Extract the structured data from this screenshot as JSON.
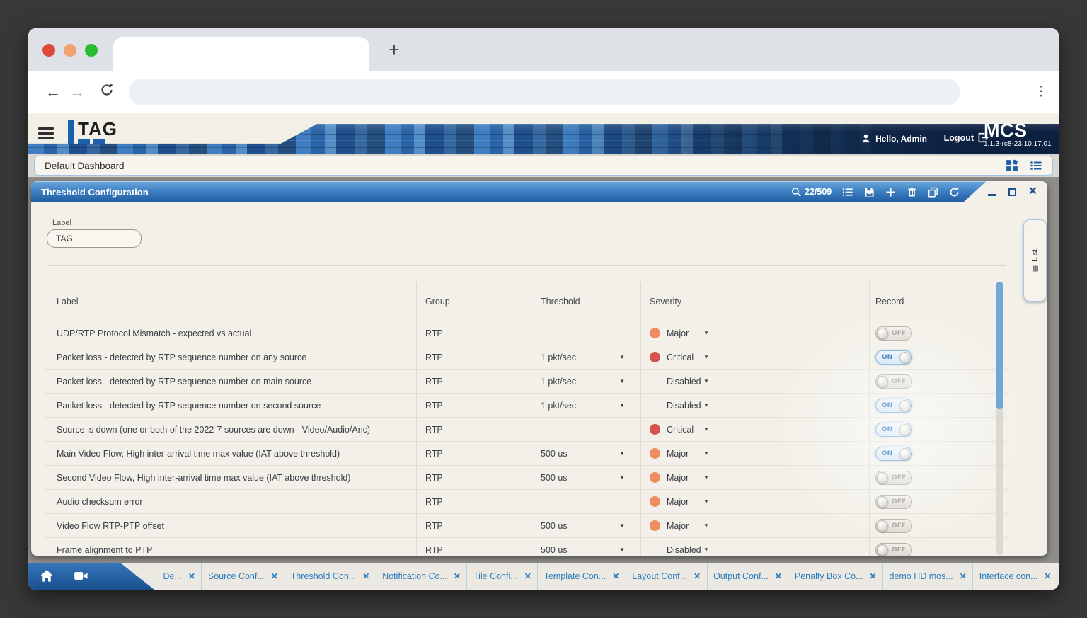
{
  "chrome": {
    "new_tab": "+",
    "menu_glyph": "⋮",
    "back_glyph": "←",
    "forward_glyph": "→"
  },
  "appbar": {
    "brand": "TAG",
    "greeting": "Hello, Admin",
    "logout_label": "Logout",
    "product": "MCS",
    "version": "1.1.3-rc8-23.10.17.01"
  },
  "dashboard": {
    "title": "Default Dashboard"
  },
  "panel": {
    "title": "Threshold Configuration",
    "zoom_indicator": "22/509",
    "field_label": "Label",
    "field_value": "TAG",
    "side_tab_label": "List",
    "side_tab_icon_glyph": "▦",
    "close_glyph": "✕"
  },
  "table": {
    "headers": {
      "label": "Label",
      "group": "Group",
      "threshold": "Threshold",
      "severity": "Severity",
      "record": "Record"
    },
    "severity_colors": {
      "orange": "#ef8d62",
      "red": "#d5524d"
    },
    "caret_glyph": "▼",
    "rows": [
      {
        "label": "UDP/RTP Protocol Mismatch - expected vs actual",
        "group": "RTP",
        "threshold": "",
        "severity": "Major",
        "severity_color": "orange",
        "record": "OFF"
      },
      {
        "label": "Packet loss - detected by RTP sequence number on any source",
        "group": "RTP",
        "threshold": "1 pkt/sec",
        "severity": "Critical",
        "severity_color": "red",
        "record": "ON"
      },
      {
        "label": "Packet loss - detected by RTP sequence number on main source",
        "group": "RTP",
        "threshold": "1 pkt/sec",
        "severity": "Disabled",
        "severity_color": "none",
        "record": "OFF"
      },
      {
        "label": "Packet loss - detected by RTP sequence number on second source",
        "group": "RTP",
        "threshold": "1 pkt/sec",
        "severity": "Disabled",
        "severity_color": "none",
        "record": "ON"
      },
      {
        "label": "Source is down (one or both of the 2022-7 sources are down - Video/Audio/Anc)",
        "group": "RTP",
        "threshold": "",
        "severity": "Critical",
        "severity_color": "red",
        "record": "ON"
      },
      {
        "label": "Main Video Flow, High inter-arrival time max value (IAT above threshold)",
        "group": "RTP",
        "threshold": "500 us",
        "severity": "Major",
        "severity_color": "orange",
        "record": "ON"
      },
      {
        "label": "Second Video Flow, High inter-arrival time max value (IAT above threshold)",
        "group": "RTP",
        "threshold": "500 us",
        "severity": "Major",
        "severity_color": "orange",
        "record": "OFF"
      },
      {
        "label": "Audio checksum error",
        "group": "RTP",
        "threshold": "",
        "severity": "Major",
        "severity_color": "orange",
        "record": "OFF"
      },
      {
        "label": "Video Flow RTP-PTP offset",
        "group": "RTP",
        "threshold": "500 us",
        "severity": "Major",
        "severity_color": "orange",
        "record": "OFF"
      },
      {
        "label": "Frame alignment to PTP",
        "group": "RTP",
        "threshold": "500 us",
        "severity": "Disabled",
        "severity_color": "none",
        "record": "OFF"
      }
    ]
  },
  "bottom_bar": {
    "close_glyph": "✕",
    "tabs": [
      {
        "label": "De..."
      },
      {
        "label": "Source Conf..."
      },
      {
        "label": "Threshold Con..."
      },
      {
        "label": "Notification Co..."
      },
      {
        "label": "Tile Confi..."
      },
      {
        "label": "Template Con..."
      },
      {
        "label": "Layout Conf..."
      },
      {
        "label": "Output Conf..."
      },
      {
        "label": "Penalty Box Co..."
      },
      {
        "label": "demo HD mos..."
      },
      {
        "label": "Interface con..."
      }
    ]
  }
}
